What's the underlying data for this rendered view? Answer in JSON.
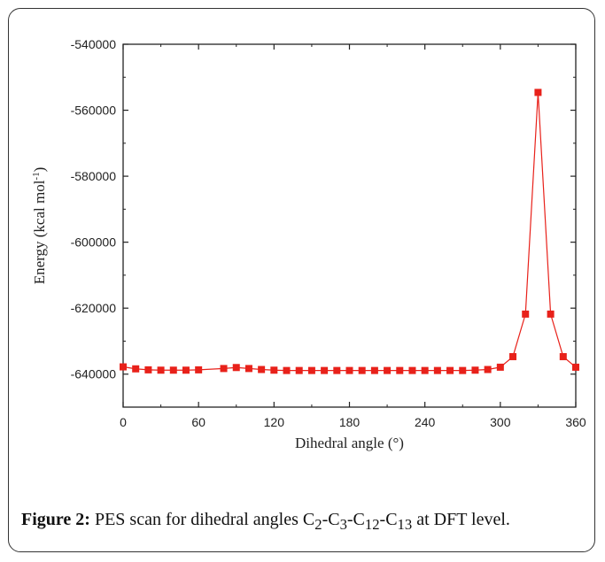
{
  "chart_data": {
    "type": "line",
    "title": "",
    "xlabel": "Dihedral angle (°)",
    "ylabel_base": "Energy (kcal mol",
    "ylabel_sup": "-1",
    "ylabel_end": ")",
    "xlim": [
      0,
      360
    ],
    "ylim": [
      -650000,
      -540000
    ],
    "xticks": [
      0,
      60,
      120,
      180,
      240,
      300,
      360
    ],
    "yticks": [
      -540000,
      -560000,
      -580000,
      -600000,
      -620000,
      -640000
    ],
    "grid": false,
    "color": "#e8211a",
    "series": [
      {
        "x": [
          0,
          10,
          20,
          30,
          40,
          50,
          60,
          80,
          90,
          100,
          110,
          120,
          130,
          140,
          150,
          160,
          170,
          180,
          190,
          200,
          210,
          220,
          230,
          240,
          250,
          260,
          270,
          280,
          290,
          300,
          310,
          320,
          330,
          340,
          350,
          360
        ],
        "y": [
          -637800,
          -638400,
          -638700,
          -638800,
          -638800,
          -638800,
          -638700,
          -638300,
          -638000,
          -638300,
          -638600,
          -638800,
          -638900,
          -638900,
          -638900,
          -638900,
          -638900,
          -638900,
          -638900,
          -638900,
          -638900,
          -638900,
          -638900,
          -638900,
          -638900,
          -638900,
          -638900,
          -638800,
          -638600,
          -637900,
          -634700,
          -621800,
          -554600,
          -621800,
          -634700,
          -637900
        ]
      }
    ]
  },
  "caption": {
    "label": "Figure 2:",
    "text_before": " PES scan for dihedral angles C",
    "parts": [
      {
        "sub": "2",
        "text": "-C"
      },
      {
        "sub": "3",
        "text": "-C"
      },
      {
        "sub": "12",
        "text": "-C"
      },
      {
        "sub": "13",
        "text": " at DFT level."
      }
    ]
  }
}
